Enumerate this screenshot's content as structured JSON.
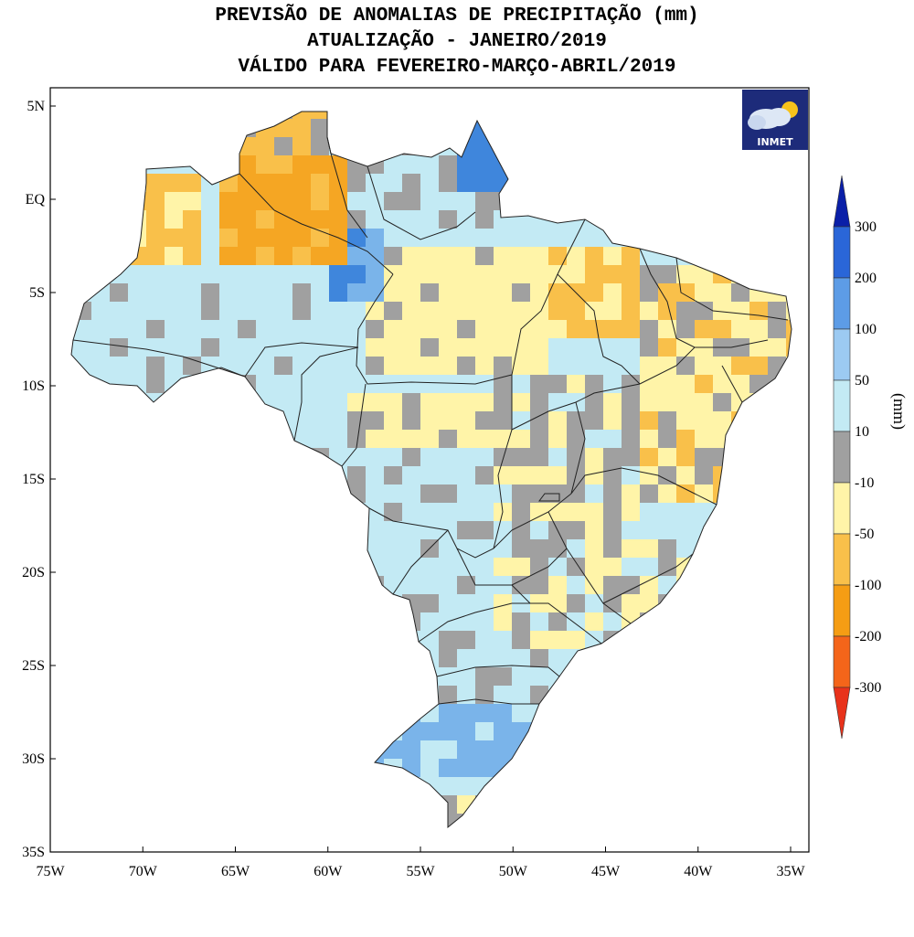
{
  "title": {
    "line1": "PREVISÃO DE ANOMALIAS DE PRECIPITAÇÃO (mm)",
    "line2": "ATUALIZAÇÃO - JANEIRO/2019",
    "line3": "VÁLIDO PARA FEVEREIRO-MARÇO-ABRIL/2019"
  },
  "logo": {
    "text": "INMET",
    "icon": "cloud-sun-icon"
  },
  "axes": {
    "lat_ticks": [
      "5N",
      "EQ",
      "5S",
      "10S",
      "15S",
      "20S",
      "25S",
      "30S",
      "35S"
    ],
    "lon_ticks": [
      "75W",
      "70W",
      "65W",
      "60W",
      "55W",
      "50W",
      "45W",
      "40W",
      "35W"
    ],
    "lat_range": [
      -35,
      5
    ],
    "lon_range": [
      -75,
      -35
    ]
  },
  "colorbar": {
    "unit": "(mm)",
    "labels": [
      "300",
      "200",
      "100",
      "50",
      "10",
      "-10",
      "-50",
      "-100",
      "-200",
      "-300"
    ],
    "colors": [
      "#0a1fa8",
      "#2a66d8",
      "#5d9ce6",
      "#9ccaf2",
      "#c3eaf4",
      "#a0a0a0",
      "#fff4a8",
      "#f9c04a",
      "#f59d14",
      "#f4651a",
      "#e8321b"
    ]
  },
  "palette": {
    "blue_dark": "#3f86dc",
    "blue_mid": "#7ab4ea",
    "blue_light": "#c3eaf4",
    "gray": "#a0a0a0",
    "yellow_light": "#fff4a8",
    "orange_light": "#f9c04a",
    "orange": "#f5a623"
  }
}
